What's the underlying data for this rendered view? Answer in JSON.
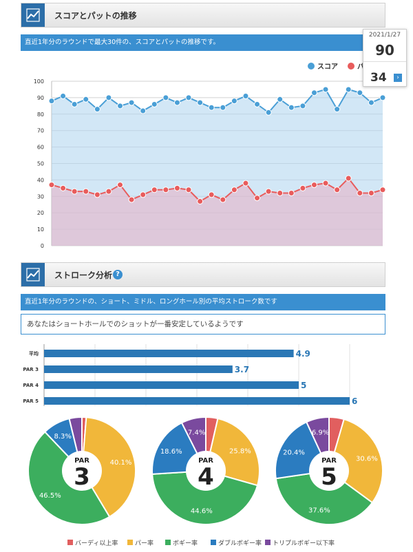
{
  "section1": {
    "title": "スコアとパットの推移",
    "info": "直近1年分のラウンドで最大30件の、スコアとパットの推移です。"
  },
  "tooltip": {
    "date": "2021/1/27",
    "score": "90",
    "putt": "34",
    "arrow": "›"
  },
  "section2": {
    "title": "ストローク分析",
    "help": "?",
    "info": "直近1年分のラウンドの、ショート、ミドル、ロングホール別の平均ストローク数です",
    "note": "あなたはショートホールでのショットが一番安定しているようです"
  },
  "chart_data": [
    {
      "type": "line",
      "ylim": [
        0,
        100
      ],
      "yticks": [
        "0",
        "10",
        "20",
        "30",
        "40",
        "50",
        "60",
        "70",
        "80",
        "90",
        "100"
      ],
      "legend": "top-right",
      "series": [
        {
          "name": "スコア",
          "color": "#4a9fd6",
          "values": [
            88,
            91,
            86,
            89,
            83,
            90,
            85,
            87,
            82,
            86,
            90,
            87,
            90,
            87,
            84,
            84,
            88,
            91,
            86,
            81,
            89,
            84,
            85,
            93,
            95,
            83,
            95,
            93,
            87,
            90
          ]
        },
        {
          "name": "パット",
          "color": "#e85c5c",
          "values": [
            37,
            35,
            33,
            33,
            31,
            33,
            37,
            28,
            31,
            34,
            34,
            35,
            34,
            27,
            31,
            28,
            34,
            38,
            29,
            33,
            32,
            32,
            35,
            37,
            38,
            34,
            41,
            32,
            32,
            34
          ]
        }
      ]
    },
    {
      "type": "bar",
      "orientation": "horizontal",
      "categories": [
        "平均",
        "PAR 3",
        "PAR 4",
        "PAR 5"
      ],
      "values": [
        4.9,
        3.7,
        5,
        6
      ],
      "value_labels": [
        "4.9",
        "3.7",
        "5",
        "6"
      ],
      "xlim": [
        0,
        6
      ],
      "color": "#2a77b5"
    },
    {
      "type": "pie",
      "charts": [
        {
          "par_label": "PAR",
          "par_number": "3",
          "slices": [
            {
              "category": "バーディ以上率",
              "value": 1.3,
              "label": ""
            },
            {
              "category": "パー率",
              "value": 40.1,
              "label": "40.1%"
            },
            {
              "category": "ボギー率",
              "value": 46.5,
              "label": "46.5%"
            },
            {
              "category": "ダブルボギー率",
              "value": 8.3,
              "label": "8.3%"
            },
            {
              "category": "トリプルボギー以下率",
              "value": 3.8,
              "label": ""
            }
          ]
        },
        {
          "par_label": "PAR",
          "par_number": "4",
          "slices": [
            {
              "category": "バーディ以上率",
              "value": 3.6,
              "label": ""
            },
            {
              "category": "パー率",
              "value": 25.8,
              "label": "25.8%"
            },
            {
              "category": "ボギー率",
              "value": 44.6,
              "label": "44.6%"
            },
            {
              "category": "ダブルボギー率",
              "value": 18.6,
              "label": "18.6%"
            },
            {
              "category": "トリプルボギー以下率",
              "value": 7.4,
              "label": "7.4%"
            }
          ]
        },
        {
          "par_label": "PAR",
          "par_number": "5",
          "slices": [
            {
              "category": "バーディ以上率",
              "value": 4.5,
              "label": ""
            },
            {
              "category": "パー率",
              "value": 30.6,
              "label": "30.6%"
            },
            {
              "category": "ボギー率",
              "value": 37.6,
              "label": "37.6%"
            },
            {
              "category": "ダブルボギー率",
              "value": 20.4,
              "label": "20.4%"
            },
            {
              "category": "トリプルボギー以下率",
              "value": 6.9,
              "label": "6.9%"
            }
          ]
        }
      ],
      "legend": [
        {
          "name": "バーディ以上率",
          "color": "#e15f5f"
        },
        {
          "name": "パー率",
          "color": "#f1b73a"
        },
        {
          "name": "ボギー率",
          "color": "#3cae5e"
        },
        {
          "name": "ダブルボギー率",
          "color": "#2b7cc0"
        },
        {
          "name": "トリプルボギー以下率",
          "color": "#7a4a9e"
        }
      ]
    }
  ]
}
